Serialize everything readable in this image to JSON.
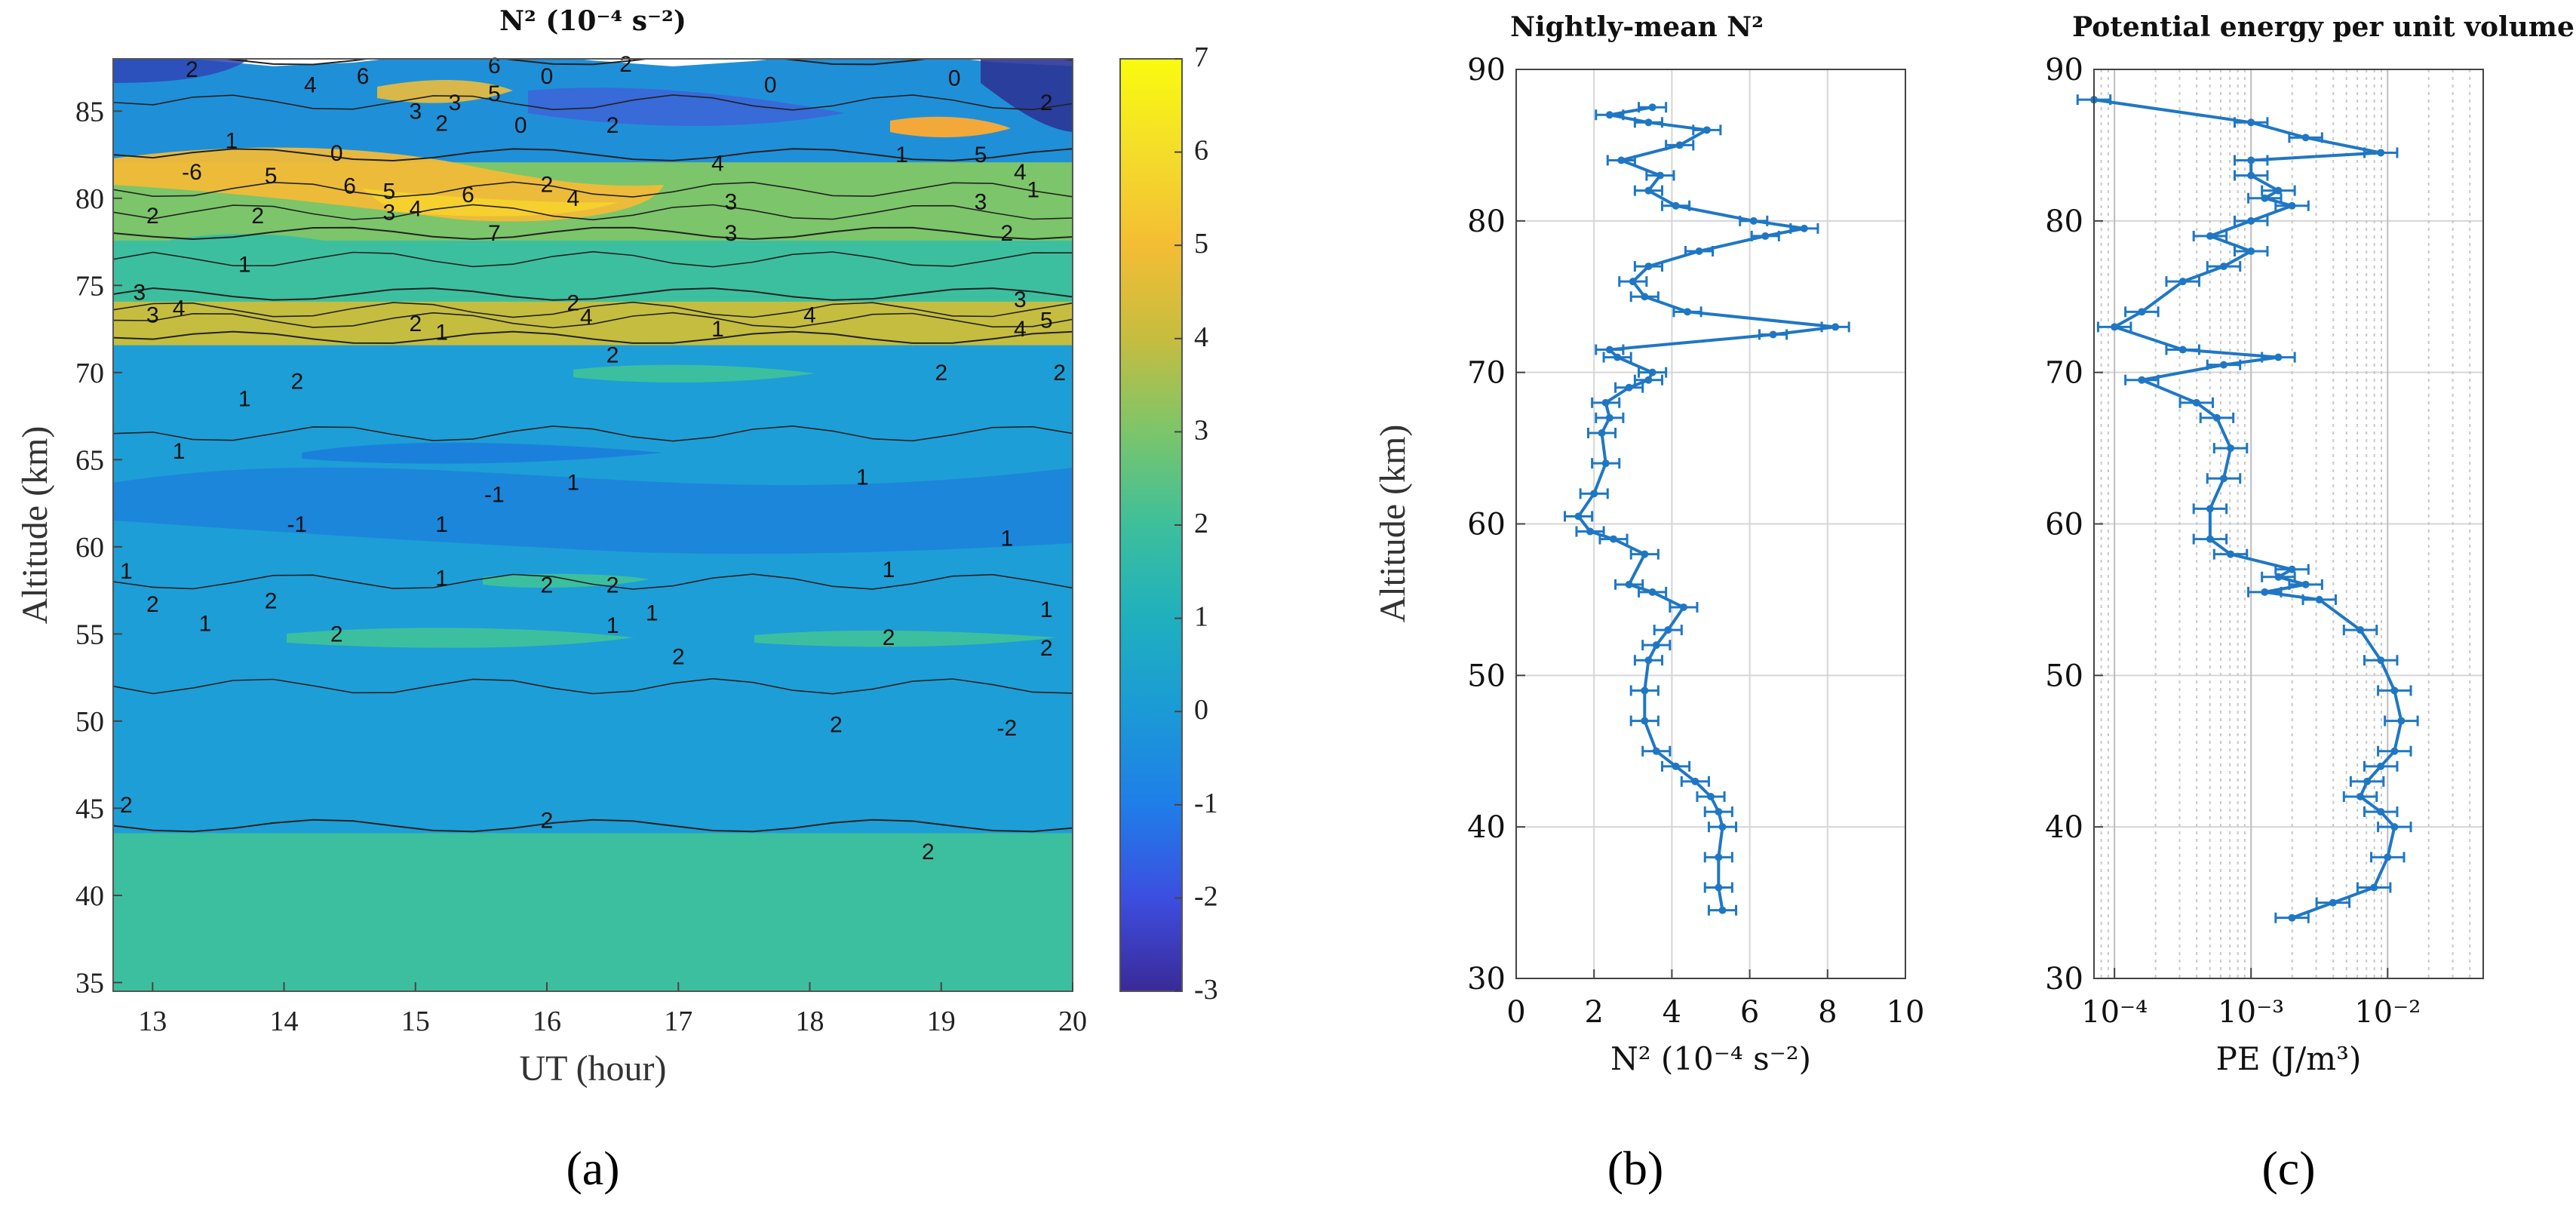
{
  "chart_data": [
    {
      "type": "heatmap",
      "panel_label": "(a)",
      "title": "N² (10⁻⁴ s⁻²)",
      "xlabel": "UT (hour)",
      "ylabel": "Altitude (km)",
      "xlim": [
        12.7,
        20
      ],
      "ylim": [
        34.5,
        88
      ],
      "xticks": [
        "13",
        "14",
        "15",
        "16",
        "17",
        "18",
        "19",
        "20"
      ],
      "yticks": [
        "35",
        "40",
        "45",
        "50",
        "55",
        "60",
        "65",
        "70",
        "75",
        "80",
        "85"
      ],
      "colorbar": {
        "min": -3,
        "max": 7,
        "ticks": [
          "-3",
          "-2",
          "-1",
          "0",
          "1",
          "2",
          "3",
          "4",
          "5",
          "6",
          "7"
        ],
        "colors": [
          "#3b2a98",
          "#3c4ee0",
          "#1f7ee8",
          "#1b9ad6",
          "#1fb0be",
          "#3dbf9b",
          "#7cc56a",
          "#c6bd3f",
          "#f4bd34",
          "#f4dd2a",
          "#f9fb0e"
        ]
      },
      "layers": [
        {
          "from": 34.5,
          "to": 44.0,
          "value": 2,
          "color": "#3cbf9f"
        },
        {
          "from": 44.0,
          "to": 72.0,
          "value": 1,
          "color": "#1e9ed6"
        },
        {
          "from": 72.0,
          "to": 74.5,
          "value": 4,
          "color": "#c5bd3f"
        },
        {
          "from": 74.5,
          "to": 78.0,
          "value": 2,
          "color": "#3cbf9f"
        },
        {
          "from": 78.0,
          "to": 82.5,
          "value": 3,
          "color": "#7cc56a"
        },
        {
          "from": 82.5,
          "to": 88.0,
          "value": 1,
          "color": "#1f90d8"
        }
      ],
      "contour_labels": [
        "-6",
        "5",
        "6",
        "4",
        "3",
        "2",
        "1",
        "0",
        "-1",
        "-2"
      ]
    },
    {
      "type": "line",
      "panel_label": "(b)",
      "title": "Nightly-mean N²",
      "xlabel": "N² (10⁻⁴ s⁻²)",
      "ylabel": "Altitude (km)",
      "xlim": [
        0,
        10
      ],
      "ylim": [
        30,
        90
      ],
      "xticks": [
        "0",
        "2",
        "4",
        "6",
        "8",
        "10"
      ],
      "yticks": [
        "30",
        "40",
        "50",
        "60",
        "70",
        "80",
        "90"
      ],
      "color": "#1f77c4",
      "series": [
        {
          "name": "Nightly-mean N²",
          "error_bars": true,
          "x": [
            5.3,
            5.2,
            5.2,
            5.3,
            5.2,
            5.0,
            4.6,
            4.1,
            3.6,
            3.3,
            3.3,
            3.4,
            3.6,
            3.9,
            4.3,
            3.5,
            2.9,
            3.3,
            2.5,
            1.9,
            1.6,
            2.0,
            2.3,
            2.2,
            2.4,
            2.3,
            2.9,
            3.4,
            3.5,
            2.6,
            2.4,
            6.6,
            8.2,
            4.4,
            3.3,
            3.0,
            3.4,
            4.7,
            6.4,
            7.4,
            6.1,
            4.1,
            3.4,
            3.7,
            2.7,
            4.2,
            4.9,
            3.4,
            2.4,
            3.5
          ],
          "y": [
            34.5,
            36,
            38,
            40,
            41,
            42,
            43,
            44,
            45,
            47,
            49,
            51,
            52,
            53,
            54.5,
            55.5,
            56,
            58,
            59,
            59.5,
            60.5,
            62,
            64,
            66,
            67,
            68,
            69,
            69.5,
            70,
            71,
            71.5,
            72.5,
            73,
            74,
            75,
            76,
            77,
            78,
            79,
            79.5,
            80,
            81,
            82,
            83,
            84,
            85,
            86,
            86.5,
            87,
            87.5
          ]
        }
      ]
    },
    {
      "type": "line",
      "panel_label": "(c)",
      "title": "Potential energy per unit volume",
      "xlabel": "PE (J/m³)",
      "ylabel": "",
      "xscale": "log",
      "xlim": [
        -4.15,
        -1.3
      ],
      "ylim": [
        30,
        90
      ],
      "xticks": [
        "10⁻⁴",
        "10⁻³",
        "10⁻²"
      ],
      "yticks": [
        "30",
        "40",
        "50",
        "60",
        "70",
        "80",
        "90"
      ],
      "color": "#1f77c4",
      "series": [
        {
          "name": "PE",
          "error_bars": true,
          "xunit": "log10(J/m³)",
          "x": [
            -2.7,
            -2.4,
            -2.1,
            -2.0,
            -1.95,
            -2.05,
            -2.2,
            -2.15,
            -2.05,
            -1.95,
            -1.9,
            -1.95,
            -2.05,
            -2.2,
            -2.5,
            -2.9,
            -2.6,
            -2.8,
            -2.7,
            -3.15,
            -3.3,
            -3.3,
            -3.2,
            -3.15,
            -3.25,
            -3.4,
            -3.8,
            -3.2,
            -2.8,
            -3.5,
            -4.0,
            -3.8,
            -3.5,
            -3.2,
            -3.0,
            -3.3,
            -3.0,
            -2.7,
            -2.9,
            -2.8,
            -3.0,
            -3.0,
            -2.05,
            -2.6,
            -3.0,
            -4.15
          ],
          "y": [
            34,
            35,
            36,
            38,
            40,
            41,
            42,
            43,
            44,
            45,
            47,
            49,
            51,
            53,
            55,
            55.5,
            56,
            56.5,
            57,
            58,
            59,
            61,
            63,
            65,
            67,
            68,
            69.5,
            70.5,
            71,
            71.5,
            73,
            74,
            76,
            77,
            78,
            79,
            80,
            81,
            81.5,
            82,
            83,
            84,
            84.5,
            85.5,
            86.5,
            88
          ]
        }
      ]
    }
  ]
}
